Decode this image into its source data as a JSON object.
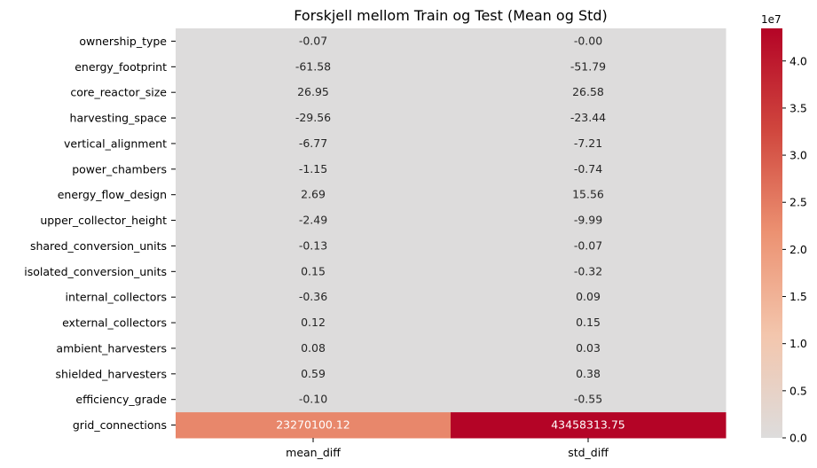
{
  "chart_data": {
    "type": "heatmap",
    "title": "Forskjell mellom Train og Test (Mean og Std)",
    "xlabel": "",
    "ylabel": "",
    "columns": [
      "mean_diff",
      "std_diff"
    ],
    "rows": [
      {
        "label": "ownership_type",
        "values": [
          -0.07,
          -0.0
        ],
        "display": [
          "-0.07",
          "-0.00"
        ]
      },
      {
        "label": "energy_footprint",
        "values": [
          -61.58,
          -51.79
        ],
        "display": [
          "-61.58",
          "-51.79"
        ]
      },
      {
        "label": "core_reactor_size",
        "values": [
          26.95,
          26.58
        ],
        "display": [
          "26.95",
          "26.58"
        ]
      },
      {
        "label": "harvesting_space",
        "values": [
          -29.56,
          -23.44
        ],
        "display": [
          "-29.56",
          "-23.44"
        ]
      },
      {
        "label": "vertical_alignment",
        "values": [
          -6.77,
          -7.21
        ],
        "display": [
          "-6.77",
          "-7.21"
        ]
      },
      {
        "label": "power_chambers",
        "values": [
          -1.15,
          -0.74
        ],
        "display": [
          "-1.15",
          "-0.74"
        ]
      },
      {
        "label": "energy_flow_design",
        "values": [
          2.69,
          15.56
        ],
        "display": [
          "2.69",
          "15.56"
        ]
      },
      {
        "label": "upper_collector_height",
        "values": [
          -2.49,
          -9.99
        ],
        "display": [
          "-2.49",
          "-9.99"
        ]
      },
      {
        "label": "shared_conversion_units",
        "values": [
          -0.13,
          -0.07
        ],
        "display": [
          "-0.13",
          "-0.07"
        ]
      },
      {
        "label": "isolated_conversion_units",
        "values": [
          0.15,
          -0.32
        ],
        "display": [
          "0.15",
          "-0.32"
        ]
      },
      {
        "label": "internal_collectors",
        "values": [
          -0.36,
          0.09
        ],
        "display": [
          "-0.36",
          "0.09"
        ]
      },
      {
        "label": "external_collectors",
        "values": [
          0.12,
          0.15
        ],
        "display": [
          "0.12",
          "0.15"
        ]
      },
      {
        "label": "ambient_harvesters",
        "values": [
          0.08,
          0.03
        ],
        "display": [
          "0.08",
          "0.03"
        ]
      },
      {
        "label": "shielded_harvesters",
        "values": [
          0.59,
          0.38
        ],
        "display": [
          "0.59",
          "0.38"
        ]
      },
      {
        "label": "efficiency_grade",
        "values": [
          -0.1,
          -0.55
        ],
        "display": [
          "-0.10",
          "-0.55"
        ]
      },
      {
        "label": "grid_connections",
        "values": [
          23270100.12,
          43458313.75
        ],
        "display": [
          "23270100.12",
          "43458313.75"
        ]
      }
    ],
    "colorbar": {
      "colormap": "coolwarm (centered at 0)",
      "range": [
        0,
        43458313.75
      ],
      "ticks": [
        0,
        5000000,
        10000000,
        15000000,
        20000000,
        25000000,
        30000000,
        35000000,
        40000000
      ],
      "tick_labels": [
        "0.0",
        "0.5",
        "1.0",
        "1.5",
        "2.0",
        "2.5",
        "3.0",
        "3.5",
        "4.0"
      ],
      "offset_label": "1e7"
    },
    "grid": false
  }
}
